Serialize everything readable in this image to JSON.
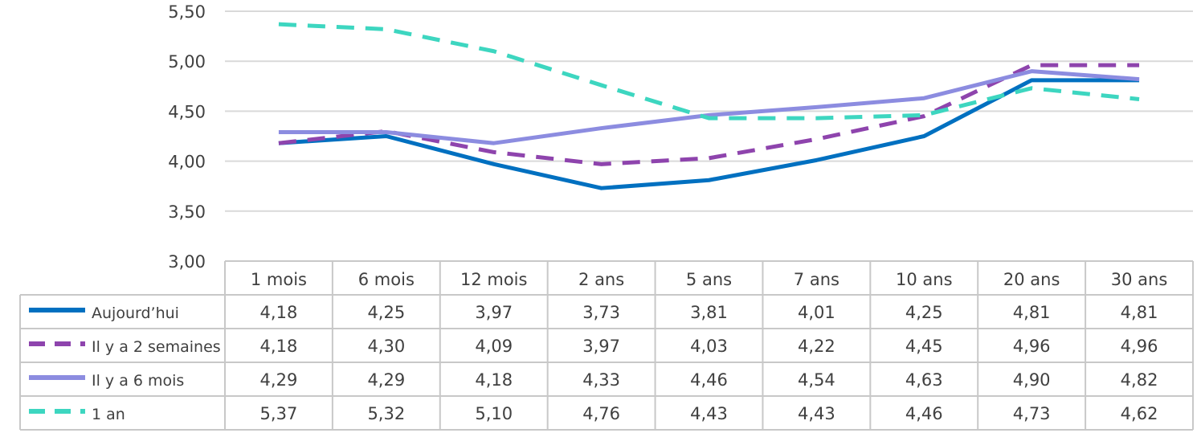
{
  "chart_data": {
    "type": "line",
    "ylim": [
      3.0,
      5.5
    ],
    "yticks": [
      "3,00",
      "3,50",
      "4,00",
      "4,50",
      "5,00",
      "5,50"
    ],
    "ytick_values": [
      3.0,
      3.5,
      4.0,
      4.5,
      5.0,
      5.5
    ],
    "grid": true,
    "legend": "data-table",
    "categories": [
      "1 mois",
      "6 mois",
      "12 mois",
      "2 ans",
      "5 ans",
      "7 ans",
      "10 ans",
      "20 ans",
      "30 ans"
    ],
    "series": [
      {
        "name": "Aujourd’hui",
        "color": "#0070c0",
        "dash": "solid",
        "values": [
          4.18,
          4.25,
          3.97,
          3.73,
          3.81,
          4.01,
          4.25,
          4.81,
          4.81
        ],
        "labels": [
          "4,18",
          "4,25",
          "3,97",
          "3,73",
          "3,81",
          "4,01",
          "4,25",
          "4,81",
          "4,81"
        ]
      },
      {
        "name": "Il y a 2 semaines",
        "color": "#8e44ad",
        "dash": "dashed",
        "values": [
          4.18,
          4.3,
          4.09,
          3.97,
          4.03,
          4.22,
          4.45,
          4.96,
          4.96
        ],
        "labels": [
          "4,18",
          "4,30",
          "4,09",
          "3,97",
          "4,03",
          "4,22",
          "4,45",
          "4,96",
          "4,96"
        ]
      },
      {
        "name": "Il y a 6 mois",
        "color": "#8c8ce0",
        "dash": "solid",
        "values": [
          4.29,
          4.29,
          4.18,
          4.33,
          4.46,
          4.54,
          4.63,
          4.9,
          4.82
        ],
        "labels": [
          "4,29",
          "4,29",
          "4,18",
          "4,33",
          "4,46",
          "4,54",
          "4,63",
          "4,90",
          "4,82"
        ]
      },
      {
        "name": "1 an",
        "color": "#3dd6c0",
        "dash": "dashed",
        "values": [
          5.37,
          5.32,
          5.1,
          4.76,
          4.43,
          4.43,
          4.46,
          4.73,
          4.62
        ],
        "labels": [
          "5,37",
          "5,32",
          "5,10",
          "4,76",
          "4,43",
          "4,43",
          "4,46",
          "4,73",
          "4,62"
        ]
      }
    ]
  }
}
